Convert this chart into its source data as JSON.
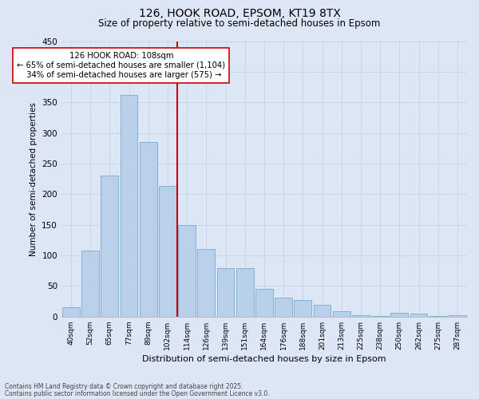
{
  "title1": "126, HOOK ROAD, EPSOM, KT19 8TX",
  "title2": "Size of property relative to semi-detached houses in Epsom",
  "xlabel": "Distribution of semi-detached houses by size in Epsom",
  "ylabel": "Number of semi-detached properties",
  "categories": [
    "40sqm",
    "52sqm",
    "65sqm",
    "77sqm",
    "89sqm",
    "102sqm",
    "114sqm",
    "126sqm",
    "139sqm",
    "151sqm",
    "164sqm",
    "176sqm",
    "188sqm",
    "201sqm",
    "213sqm",
    "225sqm",
    "238sqm",
    "250sqm",
    "262sqm",
    "275sqm",
    "287sqm"
  ],
  "values": [
    15,
    108,
    230,
    362,
    285,
    213,
    150,
    111,
    79,
    79,
    46,
    31,
    27,
    19,
    9,
    3,
    1,
    6,
    5,
    1,
    2
  ],
  "bar_color": "#b8d0ea",
  "bar_edge_color": "#7aaacc",
  "grid_color": "#c8d4e8",
  "vline_color": "#cc0000",
  "annotation_line1": "126 HOOK ROAD: 108sqm",
  "annotation_line2": "← 65% of semi-detached houses are smaller (1,104)",
  "annotation_line3": "  34% of semi-detached houses are larger (575) →",
  "annotation_box_color": "#ffffff",
  "annotation_box_edge": "#cc0000",
  "ylim": [
    0,
    450
  ],
  "yticks": [
    0,
    50,
    100,
    150,
    200,
    250,
    300,
    350,
    400,
    450
  ],
  "bg_color": "#dce6f5",
  "footer1": "Contains HM Land Registry data © Crown copyright and database right 2025.",
  "footer2": "Contains public sector information licensed under the Open Government Licence v3.0."
}
